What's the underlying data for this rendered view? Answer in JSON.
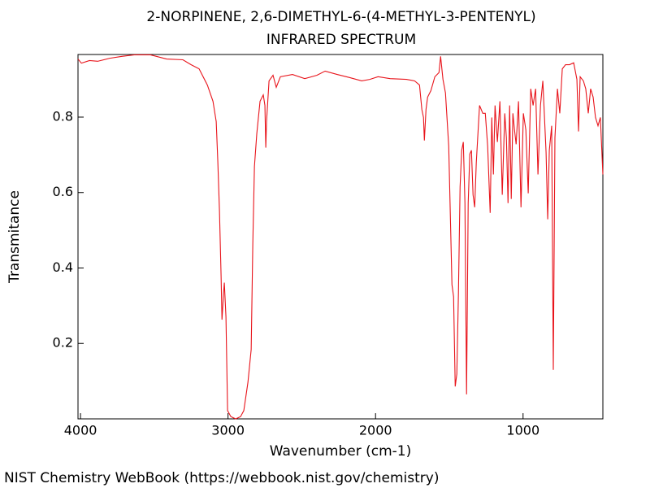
{
  "chart_data": {
    "type": "line",
    "title": "2-NORPINENE, 2,6-DIMETHYL-6-(4-METHYL-3-PENTENYL)",
    "subtitle": "INFRARED SPECTRUM",
    "x_label": "Wavenumber (cm-1)",
    "y_label": "Transmitance",
    "footer": "NIST Chemistry WebBook (https://webbook.nist.gov/chemistry)",
    "xlim": [
      4017,
      459
    ],
    "ylim": [
      0,
      0.966
    ],
    "xticks": [
      4000,
      3000,
      2000,
      1000
    ],
    "yticks": [
      0.2,
      0.4,
      0.6,
      0.8
    ],
    "series": [
      {
        "name": "spectrum",
        "color": "#e8141b",
        "x": [
          4017,
          3994,
          3939,
          3884,
          3802,
          3719,
          3636,
          3526,
          3416,
          3306,
          3251,
          3196,
          3140,
          3102,
          3080,
          3069,
          3058,
          3047,
          3041,
          3030,
          3025,
          3014,
          3003,
          2981,
          2948,
          2915,
          2893,
          2865,
          2843,
          2832,
          2821,
          2805,
          2783,
          2761,
          2750,
          2744,
          2739,
          2722,
          2695,
          2673,
          2645,
          2563,
          2480,
          2397,
          2342,
          2260,
          2177,
          2094,
          2039,
          1983,
          1901,
          1791,
          1735,
          1702,
          1686,
          1675,
          1669,
          1658,
          1647,
          1625,
          1598,
          1570,
          1559,
          1543,
          1526,
          1504,
          1482,
          1471,
          1460,
          1449,
          1438,
          1427,
          1416,
          1405,
          1394,
          1383,
          1372,
          1361,
          1350,
          1339,
          1328,
          1317,
          1295,
          1273,
          1256,
          1240,
          1223,
          1212,
          1201,
          1190,
          1174,
          1157,
          1141,
          1124,
          1113,
          1102,
          1091,
          1080,
          1069,
          1058,
          1047,
          1031,
          1014,
          998,
          981,
          965,
          948,
          932,
          915,
          899,
          882,
          866,
          844,
          833,
          822,
          806,
          795,
          784,
          767,
          751,
          734,
          712,
          685,
          657,
          635,
          624,
          613,
          591,
          575,
          558,
          542,
          525,
          509,
          492,
          476,
          459
        ],
        "values": [
          0.954,
          0.943,
          0.95,
          0.948,
          0.956,
          0.961,
          0.965,
          0.965,
          0.954,
          0.952,
          0.939,
          0.928,
          0.885,
          0.842,
          0.788,
          0.68,
          0.551,
          0.378,
          0.263,
          0.335,
          0.361,
          0.27,
          0.022,
          0.006,
          0,
          0.006,
          0.022,
          0.097,
          0.184,
          0.464,
          0.669,
          0.756,
          0.842,
          0.859,
          0.831,
          0.719,
          0.788,
          0.896,
          0.911,
          0.879,
          0.907,
          0.913,
          0.902,
          0.911,
          0.922,
          0.913,
          0.905,
          0.896,
          0.9,
          0.907,
          0.902,
          0.9,
          0.896,
          0.885,
          0.82,
          0.799,
          0.738,
          0.82,
          0.853,
          0.87,
          0.907,
          0.918,
          0.961,
          0.9,
          0.864,
          0.723,
          0.356,
          0.324,
          0.086,
          0.119,
          0.335,
          0.615,
          0.712,
          0.734,
          0.572,
          0.065,
          0.572,
          0.702,
          0.712,
          0.594,
          0.561,
          0.68,
          0.831,
          0.81,
          0.81,
          0.723,
          0.546,
          0.799,
          0.648,
          0.831,
          0.734,
          0.842,
          0.594,
          0.81,
          0.745,
          0.572,
          0.831,
          0.583,
          0.81,
          0.766,
          0.728,
          0.842,
          0.561,
          0.81,
          0.766,
          0.598,
          0.875,
          0.831,
          0.875,
          0.648,
          0.831,
          0.896,
          0.706,
          0.529,
          0.712,
          0.777,
          0.13,
          0.745,
          0.875,
          0.81,
          0.928,
          0.939,
          0.939,
          0.944,
          0.9,
          0.762,
          0.907,
          0.896,
          0.875,
          0.81,
          0.875,
          0.853,
          0.799,
          0.777,
          0.799,
          0.648
        ]
      }
    ]
  }
}
